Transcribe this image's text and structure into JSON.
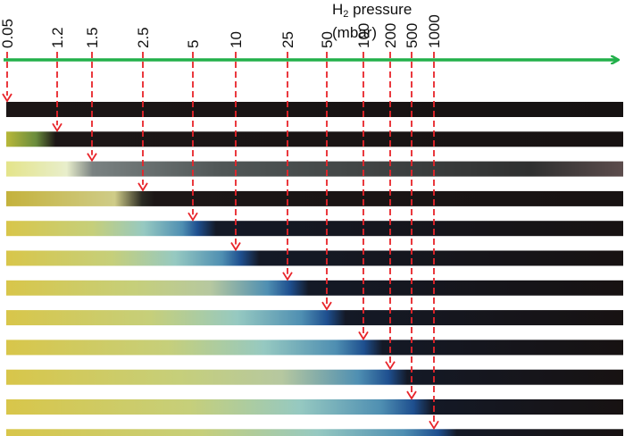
{
  "axis_label": {
    "prefix": "H",
    "subscript": "2",
    "suffix": " pressure",
    "unit": "(mbar)"
  },
  "pressures": [
    "0.05",
    "1.2",
    "1.5",
    "2.5",
    "5",
    "10",
    "25",
    "50",
    "100",
    "200",
    "500",
    "1000"
  ],
  "colors": {
    "axis_arrow": "#22b04a",
    "marker_arrow": "#e8242a",
    "dark_strip": "#1c1616",
    "yellow": "#d8c64a",
    "pale": "#e8eecb",
    "teal": "#96c9c1",
    "blue": "#1e4f8f"
  },
  "strips": [
    {
      "pressure": "0.05",
      "transition_fraction": 0.0
    },
    {
      "pressure": "1.2",
      "transition_fraction": 0.08
    },
    {
      "pressure": "1.5",
      "transition_fraction": 0.14
    },
    {
      "pressure": "2.5",
      "transition_fraction": 0.22
    },
    {
      "pressure": "5",
      "transition_fraction": 0.31
    },
    {
      "pressure": "10",
      "transition_fraction": 0.38
    },
    {
      "pressure": "25",
      "transition_fraction": 0.46
    },
    {
      "pressure": "50",
      "transition_fraction": 0.52
    },
    {
      "pressure": "100",
      "transition_fraction": 0.58
    },
    {
      "pressure": "200",
      "transition_fraction": 0.62
    },
    {
      "pressure": "500",
      "transition_fraction": 0.66
    },
    {
      "pressure": "1000",
      "transition_fraction": 0.7
    }
  ]
}
